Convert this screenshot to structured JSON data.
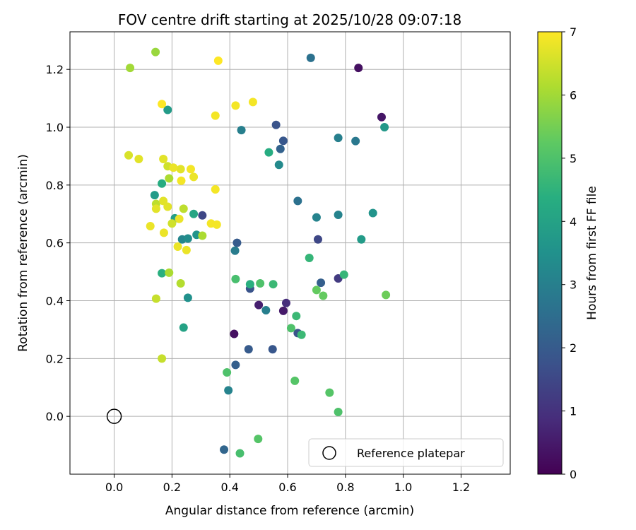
{
  "chart_data": {
    "type": "scatter",
    "title": "FOV centre drift starting at 2025/10/28 09:07:18",
    "xlabel": "Angular distance from reference (arcmin)",
    "ylabel": "Rotation from reference (arcmin)",
    "xlim": [
      -0.153,
      1.37
    ],
    "ylim": [
      -0.2,
      1.33
    ],
    "xticks": [
      0.0,
      0.2,
      0.4,
      0.6,
      0.8,
      1.0,
      1.2
    ],
    "yticks": [
      0.0,
      0.2,
      0.4,
      0.6,
      0.8,
      1.0,
      1.2
    ],
    "xtick_labels": [
      "0.0",
      "0.2",
      "0.4",
      "0.6",
      "0.8",
      "1.0",
      "1.2"
    ],
    "ytick_labels": [
      "0.0",
      "0.2",
      "0.4",
      "0.6",
      "0.8",
      "1.0",
      "1.2"
    ],
    "grid": true,
    "colorbar": {
      "label": "Hours from first FF file",
      "range": [
        0,
        7
      ],
      "ticks": [
        0,
        1,
        2,
        3,
        4,
        5,
        6,
        7
      ],
      "tick_labels": [
        "0",
        "1",
        "2",
        "3",
        "4",
        "5",
        "6",
        "7"
      ],
      "colormap": "viridis"
    },
    "legend": {
      "location": "lower-right",
      "entries": [
        "Reference platepar"
      ]
    },
    "reference": {
      "x": 0.0,
      "y": 0.0,
      "label": "Reference platepar"
    },
    "points": [
      {
        "x": 0.845,
        "y": 1.205,
        "h": 0.3
      },
      {
        "x": 0.925,
        "y": 1.035,
        "h": 0.4
      },
      {
        "x": 0.415,
        "y": 0.285,
        "h": 0.3
      },
      {
        "x": 0.5,
        "y": 0.385,
        "h": 0.6
      },
      {
        "x": 0.585,
        "y": 0.365,
        "h": 0.5
      },
      {
        "x": 0.595,
        "y": 0.392,
        "h": 0.9
      },
      {
        "x": 0.775,
        "y": 0.477,
        "h": 1.2
      },
      {
        "x": 0.305,
        "y": 0.695,
        "h": 1.5
      },
      {
        "x": 0.705,
        "y": 0.612,
        "h": 1.5
      },
      {
        "x": 0.56,
        "y": 1.008,
        "h": 1.8
      },
      {
        "x": 0.585,
        "y": 0.953,
        "h": 1.9
      },
      {
        "x": 0.575,
        "y": 0.925,
        "h": 2.2
      },
      {
        "x": 0.425,
        "y": 0.6,
        "h": 2.0
      },
      {
        "x": 0.47,
        "y": 0.442,
        "h": 1.8
      },
      {
        "x": 0.465,
        "y": 0.232,
        "h": 2.0
      },
      {
        "x": 0.548,
        "y": 0.232,
        "h": 1.9
      },
      {
        "x": 0.42,
        "y": 0.178,
        "h": 2.1
      },
      {
        "x": 0.635,
        "y": 0.288,
        "h": 1.8
      },
      {
        "x": 0.715,
        "y": 0.462,
        "h": 2.1
      },
      {
        "x": 0.38,
        "y": -0.115,
        "h": 2.3
      },
      {
        "x": 0.68,
        "y": 1.24,
        "h": 2.6
      },
      {
        "x": 0.635,
        "y": 0.745,
        "h": 2.6
      },
      {
        "x": 0.835,
        "y": 0.952,
        "h": 2.8
      },
      {
        "x": 0.775,
        "y": 0.963,
        "h": 3.0
      },
      {
        "x": 0.44,
        "y": 0.99,
        "h": 3.0
      },
      {
        "x": 0.525,
        "y": 0.367,
        "h": 3.0
      },
      {
        "x": 0.418,
        "y": 0.573,
        "h": 2.9
      },
      {
        "x": 0.7,
        "y": 0.688,
        "h": 3.1
      },
      {
        "x": 0.775,
        "y": 0.697,
        "h": 3.1
      },
      {
        "x": 0.395,
        "y": 0.09,
        "h": 3.1
      },
      {
        "x": 0.57,
        "y": 0.87,
        "h": 3.3
      },
      {
        "x": 0.235,
        "y": 0.612,
        "h": 3.2
      },
      {
        "x": 0.255,
        "y": 0.615,
        "h": 3.4
      },
      {
        "x": 0.285,
        "y": 0.628,
        "h": 3.6
      },
      {
        "x": 0.255,
        "y": 0.41,
        "h": 3.5
      },
      {
        "x": 0.895,
        "y": 0.703,
        "h": 3.6
      },
      {
        "x": 0.935,
        "y": 1.0,
        "h": 3.7
      },
      {
        "x": 0.855,
        "y": 0.612,
        "h": 3.8
      },
      {
        "x": 0.185,
        "y": 1.06,
        "h": 3.8
      },
      {
        "x": 0.14,
        "y": 0.765,
        "h": 3.8
      },
      {
        "x": 0.21,
        "y": 0.685,
        "h": 3.9
      },
      {
        "x": 0.275,
        "y": 0.7,
        "h": 4.1
      },
      {
        "x": 0.24,
        "y": 0.307,
        "h": 4.0
      },
      {
        "x": 0.535,
        "y": 0.913,
        "h": 4.3
      },
      {
        "x": 0.165,
        "y": 0.805,
        "h": 4.3
      },
      {
        "x": 0.165,
        "y": 0.495,
        "h": 4.4
      },
      {
        "x": 0.47,
        "y": 0.457,
        "h": 4.4
      },
      {
        "x": 0.675,
        "y": 0.548,
        "h": 4.6
      },
      {
        "x": 0.55,
        "y": 0.457,
        "h": 4.7
      },
      {
        "x": 0.63,
        "y": 0.347,
        "h": 4.7
      },
      {
        "x": 0.795,
        "y": 0.49,
        "h": 4.6
      },
      {
        "x": 0.648,
        "y": 0.282,
        "h": 4.7
      },
      {
        "x": 0.42,
        "y": 0.475,
        "h": 4.9
      },
      {
        "x": 0.505,
        "y": 0.46,
        "h": 5.0
      },
      {
        "x": 0.612,
        "y": 0.305,
        "h": 5.0
      },
      {
        "x": 0.39,
        "y": 0.152,
        "h": 5.0
      },
      {
        "x": 0.625,
        "y": 0.123,
        "h": 5.1
      },
      {
        "x": 0.745,
        "y": 0.082,
        "h": 5.1
      },
      {
        "x": 0.775,
        "y": 0.015,
        "h": 5.0
      },
      {
        "x": 0.435,
        "y": -0.128,
        "h": 4.9
      },
      {
        "x": 0.498,
        "y": -0.078,
        "h": 5.1
      },
      {
        "x": 0.7,
        "y": 0.437,
        "h": 5.3
      },
      {
        "x": 0.723,
        "y": 0.417,
        "h": 5.3
      },
      {
        "x": 0.94,
        "y": 0.42,
        "h": 5.4
      },
      {
        "x": 0.143,
        "y": 1.26,
        "h": 5.9
      },
      {
        "x": 0.055,
        "y": 1.205,
        "h": 6.0
      },
      {
        "x": 0.19,
        "y": 0.823,
        "h": 6.1
      },
      {
        "x": 0.19,
        "y": 0.497,
        "h": 6.1
      },
      {
        "x": 0.23,
        "y": 0.46,
        "h": 6.2
      },
      {
        "x": 0.305,
        "y": 0.625,
        "h": 6.1
      },
      {
        "x": 0.145,
        "y": 0.735,
        "h": 6.3
      },
      {
        "x": 0.24,
        "y": 0.718,
        "h": 6.3
      },
      {
        "x": 0.185,
        "y": 0.865,
        "h": 6.5
      },
      {
        "x": 0.2,
        "y": 0.667,
        "h": 6.5
      },
      {
        "x": 0.145,
        "y": 0.407,
        "h": 6.4
      },
      {
        "x": 0.165,
        "y": 0.2,
        "h": 6.4
      },
      {
        "x": 0.05,
        "y": 0.903,
        "h": 6.6
      },
      {
        "x": 0.085,
        "y": 0.89,
        "h": 6.7
      },
      {
        "x": 0.17,
        "y": 0.89,
        "h": 6.7
      },
      {
        "x": 0.23,
        "y": 0.855,
        "h": 6.7
      },
      {
        "x": 0.145,
        "y": 0.718,
        "h": 6.7
      },
      {
        "x": 0.17,
        "y": 0.745,
        "h": 6.7
      },
      {
        "x": 0.185,
        "y": 0.725,
        "h": 6.7
      },
      {
        "x": 0.225,
        "y": 0.683,
        "h": 6.8
      },
      {
        "x": 0.172,
        "y": 0.635,
        "h": 6.8
      },
      {
        "x": 0.125,
        "y": 0.658,
        "h": 6.8
      },
      {
        "x": 0.22,
        "y": 0.587,
        "h": 6.8
      },
      {
        "x": 0.25,
        "y": 0.575,
        "h": 6.8
      },
      {
        "x": 0.205,
        "y": 0.86,
        "h": 6.8
      },
      {
        "x": 0.275,
        "y": 0.828,
        "h": 6.8
      },
      {
        "x": 0.265,
        "y": 0.855,
        "h": 6.9
      },
      {
        "x": 0.232,
        "y": 0.815,
        "h": 6.9
      },
      {
        "x": 0.335,
        "y": 0.667,
        "h": 6.9
      },
      {
        "x": 0.355,
        "y": 0.663,
        "h": 6.9
      },
      {
        "x": 0.35,
        "y": 0.785,
        "h": 6.9
      },
      {
        "x": 0.35,
        "y": 1.04,
        "h": 6.9
      },
      {
        "x": 0.42,
        "y": 1.075,
        "h": 6.9
      },
      {
        "x": 0.48,
        "y": 1.087,
        "h": 6.9
      },
      {
        "x": 0.36,
        "y": 1.23,
        "h": 7.0
      },
      {
        "x": 0.165,
        "y": 1.08,
        "h": 7.0
      }
    ]
  }
}
